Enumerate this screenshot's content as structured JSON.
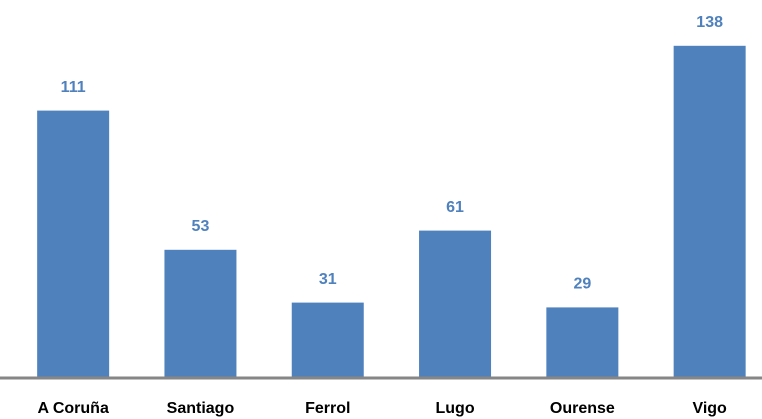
{
  "chart_data": {
    "type": "bar",
    "categories": [
      "A Coruña",
      "Santiago",
      "Ferrol",
      "Lugo",
      "Ourense",
      "Vigo"
    ],
    "values": [
      111,
      53,
      31,
      61,
      29,
      138
    ],
    "color": "#4f81bd",
    "label_color": "#4f81bd"
  }
}
